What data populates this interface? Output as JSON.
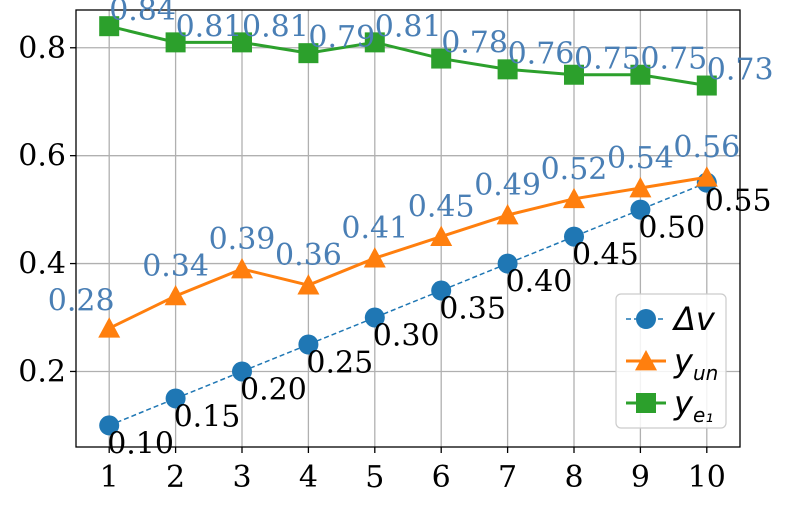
{
  "chart_data": {
    "type": "line",
    "x": [
      1,
      2,
      3,
      4,
      5,
      6,
      7,
      8,
      9,
      10
    ],
    "xlim": [
      0.5,
      10.5
    ],
    "ylim": [
      0.06,
      0.87
    ],
    "yticks": [
      0.2,
      0.4,
      0.6,
      0.8
    ],
    "grid": true,
    "legend_position": "lower-right",
    "colors": {
      "dv": "#1f77b4",
      "yun": "#ff7f0e",
      "ye1": "#2ca02c",
      "label_blue": "#4a7fb5"
    },
    "series": [
      {
        "key": "dv",
        "name": "Δv",
        "marker": "circle",
        "linestyle": "dashed",
        "values": [
          0.1,
          0.15,
          0.2,
          0.25,
          0.3,
          0.35,
          0.4,
          0.45,
          0.5,
          0.55
        ],
        "labels": [
          "0.10",
          "0.15",
          "0.20",
          "0.25",
          "0.30",
          "0.35",
          "0.40",
          "0.45",
          "0.50",
          "0.55"
        ]
      },
      {
        "key": "yun",
        "name": "y",
        "name_sub": "un",
        "marker": "triangle",
        "linestyle": "solid",
        "values": [
          0.28,
          0.34,
          0.39,
          0.36,
          0.41,
          0.45,
          0.49,
          0.52,
          0.54,
          0.56
        ],
        "labels": [
          "0.28",
          "0.34",
          "0.39",
          "0.36",
          "0.41",
          "0.45",
          "0.49",
          "0.52",
          "0.54",
          "0.56"
        ]
      },
      {
        "key": "ye1",
        "name": "y",
        "name_sub": "e₁",
        "marker": "square",
        "linestyle": "solid",
        "values": [
          0.84,
          0.81,
          0.81,
          0.79,
          0.81,
          0.78,
          0.76,
          0.75,
          0.75,
          0.73
        ],
        "labels": [
          "0.84",
          "0.81",
          "0.81",
          "0.79",
          "0.81",
          "0.78",
          "0.76",
          "0.75",
          "0.75",
          "0.73"
        ]
      }
    ]
  }
}
